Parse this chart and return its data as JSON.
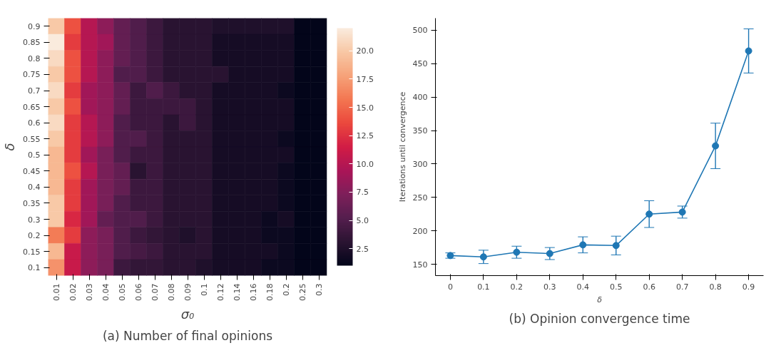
{
  "chart_data": [
    {
      "type": "heatmap",
      "title": "(a) Number of final opinions",
      "xlabel": "σ₀",
      "ylabel": "δ",
      "categories": [
        "0.01",
        "0.02",
        "0.03",
        "0.04",
        "0.05",
        "0.06",
        "0.07",
        "0.08",
        "0.09",
        "0.1",
        "0.12",
        "0.14",
        "0.16",
        "0.18",
        "0.2",
        "0.25",
        "0.3"
      ],
      "y_categories": [
        "0.9",
        "0.85",
        "0.8",
        "0.75",
        "0.7",
        "0.65",
        "0.6",
        "0.55",
        "0.5",
        "0.45",
        "0.4",
        "0.35",
        "0.3",
        "0.2",
        "0.15",
        "0.1"
      ],
      "cells": [
        [
          20,
          14,
          10,
          8,
          6,
          5,
          4,
          3,
          3,
          3,
          2.5,
          2.5,
          2.5,
          2.5,
          2.5,
          1,
          1
        ],
        [
          22,
          13,
          10,
          9,
          6,
          5,
          4,
          3,
          3,
          3,
          2,
          2,
          2,
          2,
          2,
          1,
          1
        ],
        [
          21,
          14,
          10,
          8,
          6,
          5,
          4,
          3,
          3,
          3,
          2,
          2,
          2,
          2,
          2,
          1,
          1
        ],
        [
          20,
          14,
          10,
          8,
          5,
          5,
          4,
          3,
          3,
          3,
          3,
          2,
          2,
          2,
          2,
          1,
          1
        ],
        [
          21,
          13,
          9,
          8,
          6,
          4,
          5,
          4,
          3,
          3,
          2,
          2,
          2,
          2,
          1.5,
          1,
          1
        ],
        [
          20,
          14,
          9,
          8,
          6,
          4,
          4,
          4,
          4,
          3,
          2,
          2,
          2,
          2,
          2,
          1,
          1
        ],
        [
          21,
          13,
          10,
          8,
          5,
          4,
          4,
          3,
          4,
          3,
          2,
          2,
          2,
          2,
          2,
          1,
          1
        ],
        [
          20,
          13,
          10,
          8,
          5,
          5,
          4,
          3,
          3,
          3,
          2,
          2,
          2,
          2,
          1.5,
          1,
          1
        ],
        [
          19,
          13,
          9,
          7,
          5,
          4,
          4,
          3,
          3,
          3,
          2,
          2,
          2,
          2,
          2,
          1,
          1
        ],
        [
          19,
          14,
          10,
          7,
          6,
          3,
          4,
          3,
          3,
          3,
          2,
          2,
          2,
          2,
          1.5,
          1,
          1
        ],
        [
          19,
          13,
          9,
          7,
          6,
          4,
          4,
          3,
          3,
          3,
          2,
          2,
          2,
          2,
          1.5,
          1,
          1
        ],
        [
          20,
          13,
          9,
          7,
          5,
          4,
          4,
          3,
          3,
          3,
          2,
          2,
          2,
          2,
          1.5,
          1,
          1
        ],
        [
          20,
          12,
          9,
          6,
          5,
          5,
          4,
          3,
          3,
          3,
          2,
          2,
          2,
          1.5,
          2,
          1,
          1
        ],
        [
          16,
          13,
          8,
          7,
          5,
          4,
          3.5,
          3,
          2.5,
          3,
          2,
          2,
          2,
          1.5,
          1.5,
          1,
          1
        ],
        [
          19,
          11,
          8,
          7,
          5,
          4.5,
          4,
          3,
          3,
          3,
          2,
          2,
          2,
          2,
          1.5,
          1,
          1
        ],
        [
          17,
          11,
          8,
          7,
          4,
          3.5,
          3.5,
          3,
          3,
          2.5,
          2,
          2,
          2,
          1.5,
          1.5,
          1,
          1
        ]
      ],
      "clim": [
        1,
        22
      ],
      "cticks": [
        {
          "value": 2.5,
          "label": "2.5"
        },
        {
          "value": 5,
          "label": "5.0"
        },
        {
          "value": 7.5,
          "label": "7.5"
        },
        {
          "value": 10,
          "label": "10.0"
        },
        {
          "value": 12.5,
          "label": "12.5"
        },
        {
          "value": 15,
          "label": "15.0"
        },
        {
          "value": 17.5,
          "label": "17.5"
        },
        {
          "value": 20,
          "label": "20.0"
        }
      ]
    },
    {
      "type": "line",
      "title": "(b) Opinion convergence time",
      "xlabel": "δ",
      "ylabel": "Iterations until convergence",
      "x": [
        0,
        0.1,
        0.2,
        0.3,
        0.4,
        0.5,
        0.6,
        0.7,
        0.8,
        0.9
      ],
      "series": [
        {
          "color": "#1f77b4",
          "values": [
            163,
            161,
            168,
            166,
            179,
            178,
            225,
            228,
            327,
            469
          ],
          "errors": [
            4,
            10,
            9,
            9,
            12,
            14,
            20,
            9,
            34,
            33
          ]
        }
      ],
      "xlim": [
        -0.045,
        0.945
      ],
      "ylim": [
        133,
        518
      ],
      "xticks": [
        0,
        0.1,
        0.2,
        0.3,
        0.4,
        0.5,
        0.6,
        0.7,
        0.8,
        0.9
      ],
      "yticks": [
        150,
        200,
        250,
        300,
        350,
        400,
        450,
        500
      ],
      "marker": "circle",
      "line_style": "solid",
      "grid": false
    }
  ]
}
